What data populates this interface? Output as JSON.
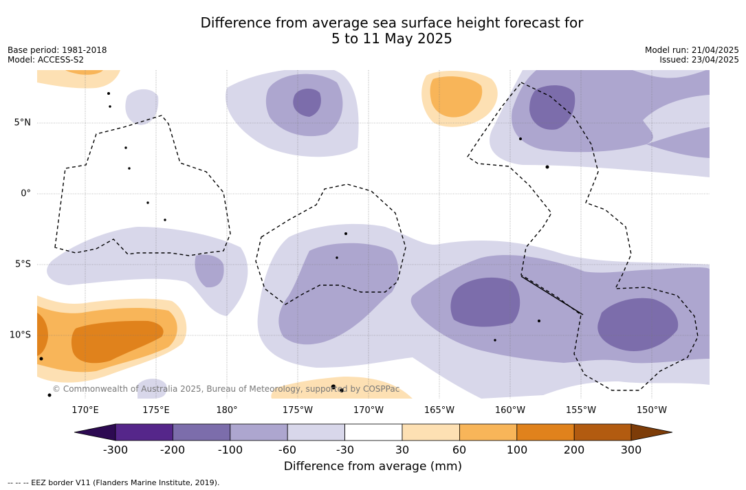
{
  "title_line1": "Difference from average sea surface height forecast for",
  "title_line2": "5 to 11 May 2025",
  "meta": {
    "base_period": "Base period: 1981-2018",
    "model": "Model: ACCESS-S2",
    "model_run": "Model run: 21/04/2025",
    "issued": "Issued: 23/04/2025"
  },
  "map": {
    "longitude_labels": [
      "170°E",
      "175°E",
      "180°",
      "175°W",
      "170°W",
      "165°W",
      "160°W",
      "155°W",
      "150°W"
    ],
    "latitude_labels": [
      "5°N",
      "0°",
      "5°S",
      "10°S"
    ],
    "copyright": "© Commonwealth of Australia 2025, Bureau of Meteorology, supported by COSPPac"
  },
  "colorbar": {
    "tick_labels": [
      "-300",
      "-200",
      "-100",
      "-60",
      "-30",
      "30",
      "60",
      "100",
      "200",
      "300"
    ],
    "colors": [
      "#2d0a52",
      "#55268a",
      "#7c6dab",
      "#ada6cf",
      "#d8d7ea",
      "#ffffff",
      "#fde0b3",
      "#f8b559",
      "#e0821c",
      "#b25b10",
      "#7d3c08"
    ],
    "title": "Difference from average (mm)"
  },
  "footnote": "-- -- -- EEZ border V11 (Flanders Marine Institute, 2019)."
}
